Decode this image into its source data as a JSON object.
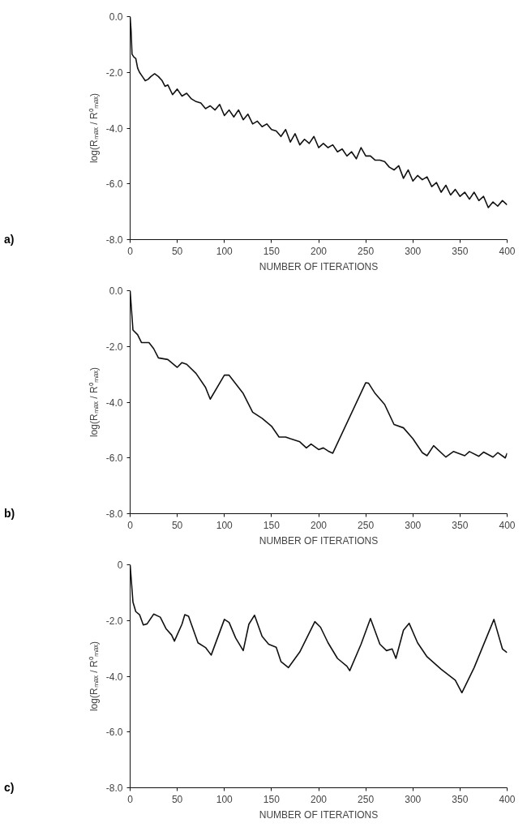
{
  "chart_data": [
    {
      "type": "line",
      "xlabel": "NUMBER OF ITERATIONS",
      "ylabel": "log(Rₘₐₓ / R⁰ₘₐₓ)",
      "annotations": [
        "a)"
      ],
      "xlim": [
        0,
        400
      ],
      "ylim": [
        -8,
        0
      ],
      "xticks": [
        0,
        50,
        100,
        150,
        200,
        250,
        300,
        350,
        400
      ],
      "yticks": [
        {
          "value": -8,
          "label": "-8.0"
        },
        {
          "value": -6,
          "label": "-6.0"
        },
        {
          "value": -4,
          "label": "-4.0"
        },
        {
          "value": -2,
          "label": "-2.0"
        },
        {
          "value": 0,
          "label": "0.0"
        }
      ],
      "grid": false,
      "line_style": "solid",
      "marker": "none",
      "series": [
        {
          "color": "#111111",
          "x": [
            0,
            1,
            2,
            4,
            6,
            8,
            10,
            13,
            16,
            19,
            22,
            26,
            30,
            34,
            37,
            40,
            45,
            50,
            55,
            60,
            65,
            70,
            75,
            80,
            85,
            90,
            95,
            100,
            105,
            110,
            115,
            120,
            125,
            130,
            135,
            140,
            145,
            150,
            155,
            160,
            165,
            170,
            175,
            180,
            185,
            190,
            195,
            200,
            205,
            210,
            215,
            220,
            225,
            230,
            235,
            240,
            245,
            250,
            255,
            260,
            265,
            270,
            275,
            280,
            285,
            290,
            295,
            300,
            305,
            310,
            315,
            320,
            325,
            330,
            335,
            340,
            345,
            350,
            355,
            360,
            365,
            370,
            375,
            380,
            385,
            390,
            395,
            400
          ],
          "values": [
            0,
            -0.5,
            -1.35,
            -1.45,
            -1.5,
            -1.85,
            -2.0,
            -2.15,
            -2.3,
            -2.25,
            -2.15,
            -2.05,
            -2.15,
            -2.3,
            -2.5,
            -2.45,
            -2.8,
            -2.6,
            -2.85,
            -2.75,
            -2.95,
            -3.05,
            -3.1,
            -3.3,
            -3.2,
            -3.35,
            -3.15,
            -3.55,
            -3.35,
            -3.6,
            -3.35,
            -3.7,
            -3.5,
            -3.85,
            -3.75,
            -3.95,
            -3.85,
            -4.05,
            -4.1,
            -4.3,
            -4.05,
            -4.5,
            -4.2,
            -4.6,
            -4.4,
            -4.55,
            -4.3,
            -4.7,
            -4.55,
            -4.7,
            -4.6,
            -4.85,
            -4.75,
            -5.0,
            -4.85,
            -5.1,
            -4.7,
            -5.0,
            -5.0,
            -5.15,
            -5.15,
            -5.2,
            -5.4,
            -5.5,
            -5.35,
            -5.8,
            -5.5,
            -5.9,
            -5.7,
            -5.85,
            -5.75,
            -6.1,
            -5.95,
            -6.3,
            -6.05,
            -6.4,
            -6.2,
            -6.45,
            -6.3,
            -6.55,
            -6.3,
            -6.6,
            -6.45,
            -6.85,
            -6.65,
            -6.8,
            -6.6,
            -6.75
          ]
        }
      ]
    },
    {
      "type": "line",
      "xlabel": "NUMBER OF ITERATIONS",
      "ylabel": "log(Rₘₐₓ / R⁰ₘₐₓ)",
      "annotations": [
        "b)"
      ],
      "xlim": [
        0,
        400
      ],
      "ylim": [
        -8,
        0
      ],
      "xticks": [
        0,
        50,
        100,
        150,
        200,
        250,
        300,
        350,
        400
      ],
      "yticks": [
        {
          "value": -8,
          "label": "-8.0"
        },
        {
          "value": -6,
          "label": "-6.0"
        },
        {
          "value": -4,
          "label": "-4.0"
        },
        {
          "value": -2,
          "label": "-2.0"
        },
        {
          "value": 0,
          "label": "0.0"
        }
      ],
      "grid": false,
      "line_style": "solid",
      "marker": "none",
      "series": [
        {
          "color": "#111111",
          "x": [
            0,
            3,
            8,
            12,
            20,
            25,
            30,
            40,
            50,
            55,
            60,
            70,
            80,
            85,
            100,
            105,
            110,
            120,
            130,
            140,
            150,
            158,
            165,
            170,
            180,
            187,
            192,
            200,
            205,
            210,
            215,
            250,
            253,
            260,
            270,
            280,
            290,
            300,
            310,
            315,
            322,
            335,
            343,
            355,
            360,
            370,
            375,
            385,
            390,
            398,
            400
          ],
          "values": [
            0,
            -1.41,
            -1.58,
            -1.86,
            -1.86,
            -2.08,
            -2.41,
            -2.47,
            -2.75,
            -2.58,
            -2.64,
            -2.97,
            -3.47,
            -3.89,
            -3.03,
            -3.03,
            -3.25,
            -3.69,
            -4.36,
            -4.58,
            -4.86,
            -5.25,
            -5.25,
            -5.31,
            -5.42,
            -5.64,
            -5.5,
            -5.7,
            -5.64,
            -5.75,
            -5.83,
            -3.3,
            -3.32,
            -3.69,
            -4.08,
            -4.8,
            -4.92,
            -5.31,
            -5.81,
            -5.92,
            -5.56,
            -5.97,
            -5.77,
            -5.92,
            -5.77,
            -5.94,
            -5.79,
            -5.97,
            -5.81,
            -6.0,
            -5.83
          ]
        }
      ]
    },
    {
      "type": "line",
      "xlabel": "NUMBER OF ITERATIONS",
      "ylabel": "log(Rₘₐₓ / R⁰ₘₐₓ)",
      "annotations": [
        "c)"
      ],
      "xlim": [
        0,
        400
      ],
      "ylim": [
        -8,
        0
      ],
      "xticks": [
        0,
        50,
        100,
        150,
        200,
        250,
        300,
        350,
        400
      ],
      "yticks": [
        {
          "value": -8,
          "label": "-8.0"
        },
        {
          "value": -6,
          "label": "-6.0"
        },
        {
          "value": -4,
          "label": "-4.0"
        },
        {
          "value": -2,
          "label": "-2.0"
        },
        0
      ],
      "grid": false,
      "line_style": "solid",
      "marker": "none",
      "series": [
        {
          "color": "#111111",
          "x": [
            0,
            3,
            6,
            10,
            14,
            18,
            25,
            32,
            38,
            44,
            47,
            55,
            58,
            62,
            72,
            80,
            86,
            100,
            105,
            112,
            120,
            126,
            132,
            140,
            147,
            155,
            160,
            168,
            180,
            196,
            202,
            210,
            220,
            230,
            233,
            245,
            255,
            265,
            272,
            278,
            282,
            290,
            296,
            305,
            315,
            330,
            345,
            352,
            365,
            386,
            395,
            400
          ],
          "values": [
            0,
            -1.34,
            -1.68,
            -1.79,
            -2.16,
            -2.12,
            -1.77,
            -1.88,
            -2.29,
            -2.52,
            -2.74,
            -2.13,
            -1.79,
            -1.85,
            -2.8,
            -2.97,
            -3.24,
            -1.96,
            -2.07,
            -2.63,
            -3.08,
            -2.13,
            -1.81,
            -2.57,
            -2.85,
            -2.96,
            -3.47,
            -3.69,
            -3.13,
            -2.04,
            -2.24,
            -2.8,
            -3.36,
            -3.64,
            -3.8,
            -2.85,
            -1.93,
            -2.85,
            -3.08,
            -3.02,
            -3.36,
            -2.35,
            -2.1,
            -2.8,
            -3.3,
            -3.75,
            -4.14,
            -4.59,
            -3.69,
            -1.96,
            -3.02,
            -3.15
          ]
        }
      ]
    }
  ]
}
